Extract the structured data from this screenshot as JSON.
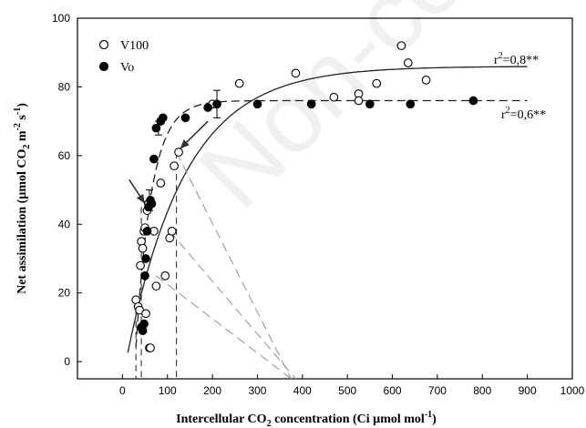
{
  "watermark": "Non-co",
  "chart_data": {
    "type": "scatter",
    "xlabel": "Intercellular CO2 concentration (Ci µmol mol-1)",
    "ylabel": "Net assimilation (µmol CO2 m-2 s-1)",
    "xlabel_parts": {
      "a": "Intercellular CO",
      "sub": "2",
      "b": " concentration (Ci  µmol mol",
      "sup": "-1",
      "c": ")"
    },
    "ylabel_parts": {
      "a": "Net  assimilation (µmol CO",
      "sub": "2",
      "b": " m",
      "sup1": "-2",
      "c": " s",
      "sup2": "-1",
      "d": ")"
    },
    "xlim": [
      -100,
      1000
    ],
    "ylim": [
      -5,
      100
    ],
    "xticks": [
      0,
      100,
      200,
      300,
      400,
      500,
      600,
      700,
      800,
      900,
      1000
    ],
    "yticks": [
      0,
      20,
      40,
      60,
      80,
      100
    ],
    "legend": {
      "placement": "top-left"
    },
    "series": [
      {
        "name": "V100",
        "marker": "open-circle",
        "points": [
          [
            30,
            18
          ],
          [
            35,
            16
          ],
          [
            38,
            15
          ],
          [
            40,
            28
          ],
          [
            42,
            35
          ],
          [
            45,
            33
          ],
          [
            48,
            38
          ],
          [
            50,
            39
          ],
          [
            52,
            14
          ],
          [
            55,
            44
          ],
          [
            58,
            46
          ],
          [
            60,
            4
          ],
          [
            62,
            4
          ],
          [
            70,
            38
          ],
          [
            75,
            22
          ],
          [
            85,
            52
          ],
          [
            95,
            25
          ],
          [
            105,
            36
          ],
          [
            110,
            38
          ],
          [
            115,
            57
          ],
          [
            125,
            61
          ],
          [
            200,
            75
          ],
          [
            260,
            81
          ],
          [
            385,
            84
          ],
          [
            470,
            77
          ],
          [
            525,
            78
          ],
          [
            525,
            76
          ],
          [
            565,
            81
          ],
          [
            620,
            92
          ],
          [
            635,
            87
          ],
          [
            675,
            82
          ]
        ]
      },
      {
        "name": "Vo",
        "marker": "filled-circle",
        "points": [
          [
            42,
            10
          ],
          [
            45,
            9
          ],
          [
            48,
            11
          ],
          [
            50,
            25
          ],
          [
            52,
            30
          ],
          [
            55,
            38
          ],
          [
            58,
            45
          ],
          [
            62,
            47
          ],
          [
            65,
            46
          ],
          [
            70,
            59
          ],
          [
            75,
            68
          ],
          [
            85,
            70
          ],
          [
            90,
            71
          ],
          [
            140,
            71
          ],
          [
            190,
            74
          ],
          [
            210,
            75
          ],
          [
            300,
            75
          ],
          [
            420,
            75
          ],
          [
            550,
            75
          ],
          [
            640,
            75
          ],
          [
            780,
            76
          ]
        ]
      }
    ],
    "fits": [
      {
        "series": "V100",
        "style": "solid",
        "r2_label": "r²=0,8**",
        "r2_parts": {
          "a": "r",
          "sup": "2",
          "b": "=0,8**"
        }
      },
      {
        "series": "Vo",
        "style": "dashed",
        "r2_label": "r²=0,6**",
        "r2_parts": {
          "a": "r",
          "sup": "2",
          "b": "=0,6**"
        }
      }
    ],
    "error_bars": [
      {
        "x": 60,
        "y": 47,
        "err": 3
      },
      {
        "x": 80,
        "y": 68,
        "err": 2
      },
      {
        "x": 210,
        "y": 75,
        "err": 4
      }
    ],
    "annotations": {
      "arrows": [
        {
          "from": [
            15,
            53
          ],
          "to": [
            50,
            46
          ]
        },
        {
          "from": [
            190,
            70
          ],
          "to": [
            128,
            62
          ]
        }
      ],
      "vertical_dashes": [
        {
          "x": 30,
          "y": 15
        },
        {
          "x": 42,
          "y": 45
        },
        {
          "x": 120,
          "y": 61
        }
      ],
      "tangents": [
        {
          "from": [
            120,
            61
          ],
          "to": [
            375,
            -5
          ]
        },
        {
          "from": [
            105,
            38
          ],
          "to": [
            385,
            -5
          ]
        },
        {
          "from": [
            75,
            25
          ],
          "to": [
            375,
            -5
          ]
        }
      ]
    }
  }
}
